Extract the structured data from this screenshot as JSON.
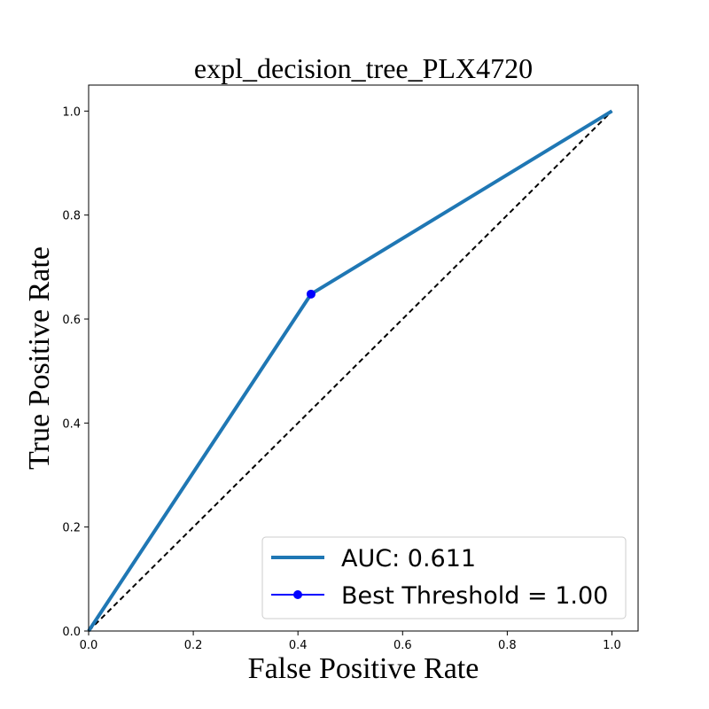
{
  "chart_data": {
    "type": "line",
    "title": "expl_decision_tree_PLX4720",
    "xlabel": "False Positive Rate",
    "ylabel": "True Positive Rate",
    "xlim": [
      0.0,
      1.05
    ],
    "ylim": [
      0.0,
      1.05
    ],
    "x_ticks": [
      "0.0",
      "0.2",
      "0.4",
      "0.6",
      "0.8",
      "1.0"
    ],
    "y_ticks": [
      "0.0",
      "0.2",
      "0.4",
      "0.6",
      "0.8",
      "1.0"
    ],
    "grid": false,
    "legend_position": "lower-right",
    "series": [
      {
        "name": "AUC: 0.611",
        "color": "#1f77b4",
        "x": [
          0.0,
          0.425,
          1.0
        ],
        "y": [
          0.0,
          0.648,
          1.0
        ]
      },
      {
        "name": "Best Threshold = 1.00",
        "color": "#0000ff",
        "marker": "circle",
        "x": [
          0.425
        ],
        "y": [
          0.648
        ]
      }
    ],
    "reference_line": {
      "style": "dashed",
      "color": "#000000",
      "x": [
        0.0,
        1.0
      ],
      "y": [
        0.0,
        1.0
      ]
    }
  }
}
